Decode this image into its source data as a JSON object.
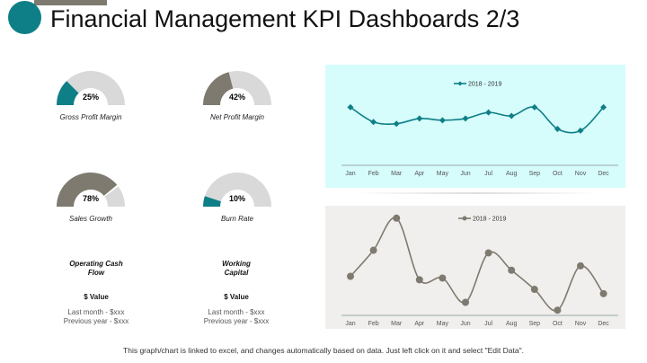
{
  "title": "Financial Management KPI Dashboards 2/3",
  "colors": {
    "accent": "#0e7f86",
    "secondary": "#7f7a6f",
    "track": "#d9d9d9",
    "chart1_bg": "#d6fcfc",
    "chart2_bg": "#f0efed"
  },
  "gauges": [
    {
      "label": "Gross Profit Margin",
      "value_text": "25%",
      "value": 25,
      "color": "#0e7f86"
    },
    {
      "label": "Net Profit Margin",
      "value_text": "42%",
      "value": 42,
      "color": "#7f7a6f"
    },
    {
      "label": "Sales Growth",
      "value_text": "78%",
      "value": 78,
      "color": "#7f7a6f"
    },
    {
      "label": "Burn Rate",
      "value_text": "10%",
      "value": 10,
      "color": "#0e7f86"
    }
  ],
  "kpis": [
    {
      "name": "Operating Cash Flow",
      "value": "$ Value",
      "last_month": "Last month - $xxx",
      "previous_year": "Previous year - $xxx"
    },
    {
      "name": "Working Capital",
      "value": "$ Value",
      "last_month": "Last month - $xxx",
      "previous_year": "Previous year - $xxx"
    }
  ],
  "chart_data": [
    {
      "type": "line",
      "categories": [
        "Jan",
        "Feb",
        "Mar",
        "Apr",
        "May",
        "Jun",
        "Jul",
        "Aug",
        "Sep",
        "Oct",
        "Nov",
        "Dec"
      ],
      "series": [
        {
          "name": "2018 - 2019",
          "values": [
            67,
            50,
            48,
            54,
            52,
            54,
            61,
            57,
            67,
            42,
            40,
            67
          ]
        }
      ],
      "marker": "diamond",
      "color": "#0e7f86",
      "ylim": [
        0,
        85
      ],
      "grid": false,
      "legend": "top"
    },
    {
      "type": "line",
      "categories": [
        "Jan",
        "Feb",
        "Mar",
        "Apr",
        "May",
        "Jun",
        "Jul",
        "Aug",
        "Sep",
        "Oct",
        "Nov",
        "Dec"
      ],
      "series": [
        {
          "name": "2018 - 2019",
          "values": [
            45,
            75,
            112,
            41,
            43,
            15,
            72,
            52,
            30,
            6,
            57,
            25
          ]
        }
      ],
      "marker": "circle",
      "color": "#7f7a6f",
      "ylim": [
        0,
        118
      ],
      "grid": false,
      "legend": "top"
    }
  ],
  "footer": "This graph/chart is linked to excel, and changes automatically based on data. Just left click on it and select \"Edit Data\"."
}
